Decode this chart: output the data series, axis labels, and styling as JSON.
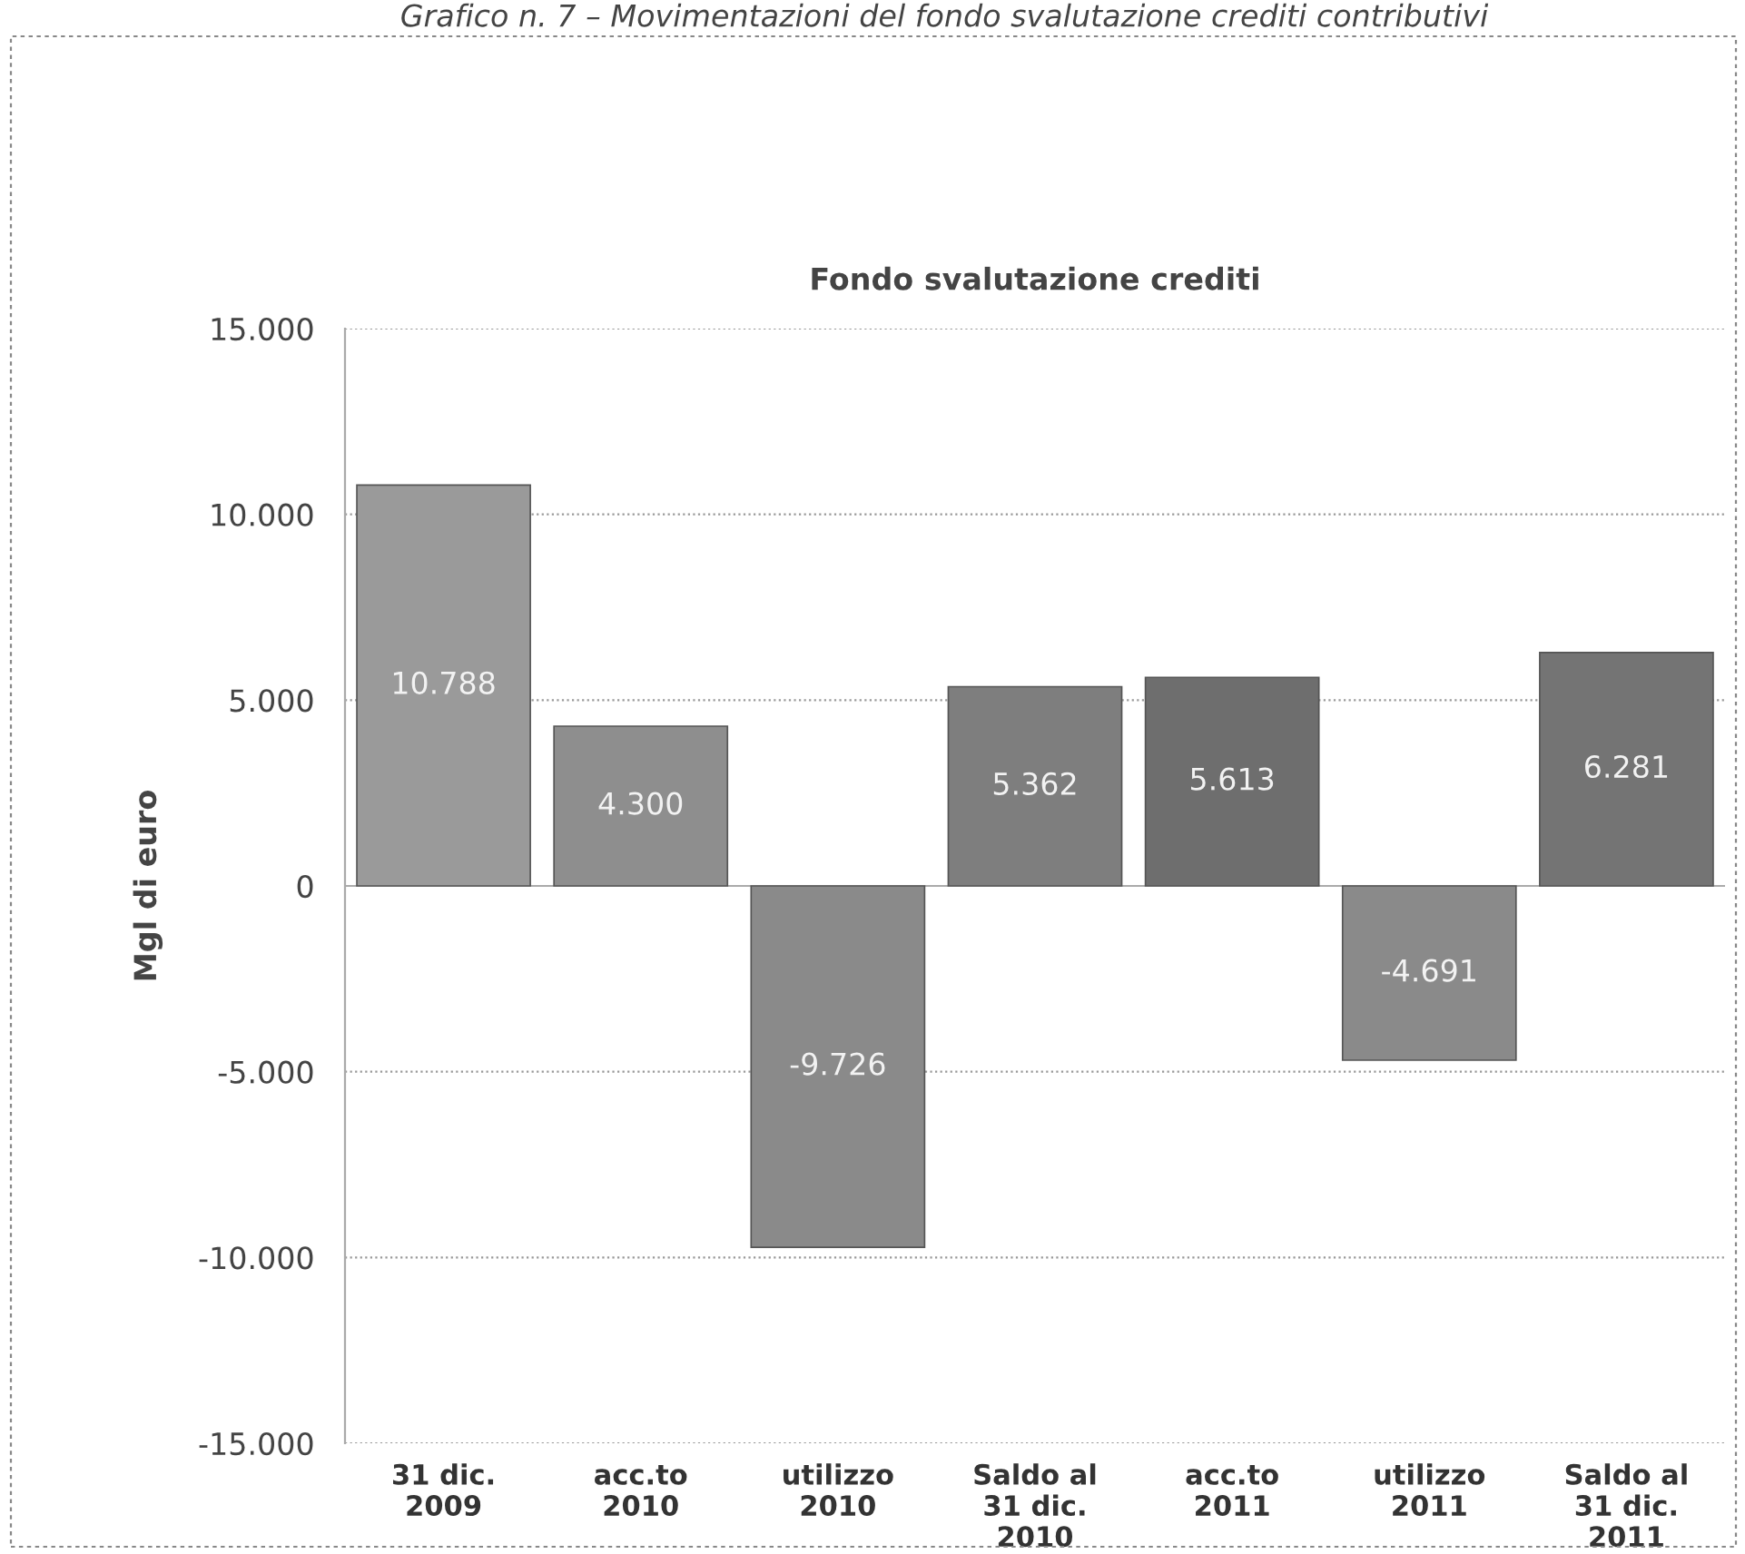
{
  "chart_data": {
    "type": "bar",
    "title": "Grafico n. 7 – Movimentazioni del fondo svalutazione crediti contributivi",
    "subtitle": "Fondo svalutazione crediti",
    "ylabel": "Mgl di euro",
    "categories": [
      "31 dic.\n2009",
      "acc.to\n2010",
      "utilizzo\n2010",
      "Saldo al\n31 dic.\n2010",
      "acc.to\n2011",
      "utilizzo\n2011",
      "Saldo al\n31 dic.\n2011"
    ],
    "values": [
      10788,
      4300,
      -9726,
      5362,
      5613,
      -4691,
      6281
    ],
    "value_labels": [
      "10.788",
      "4.300",
      "-9.726",
      "5.362",
      "5.613",
      "-4.691",
      "6.281"
    ],
    "colors": [
      "#9a9a9a",
      "#8e8e8e",
      "#8a8a8a",
      "#7e7e7e",
      "#6e6e6e",
      "#8a8a8a",
      "#747474"
    ],
    "ylim": [
      -15000,
      15000
    ],
    "yticks": [
      {
        "value": -15000,
        "label": "-15.000"
      },
      {
        "value": -10000,
        "label": "-10.000"
      },
      {
        "value": -5000,
        "label": "-5.000"
      },
      0,
      {
        "value": 5000,
        "label": "5.000"
      },
      {
        "value": 10000,
        "label": "10.000"
      },
      {
        "value": 15000,
        "label": "15.000"
      }
    ],
    "grid": "y"
  }
}
